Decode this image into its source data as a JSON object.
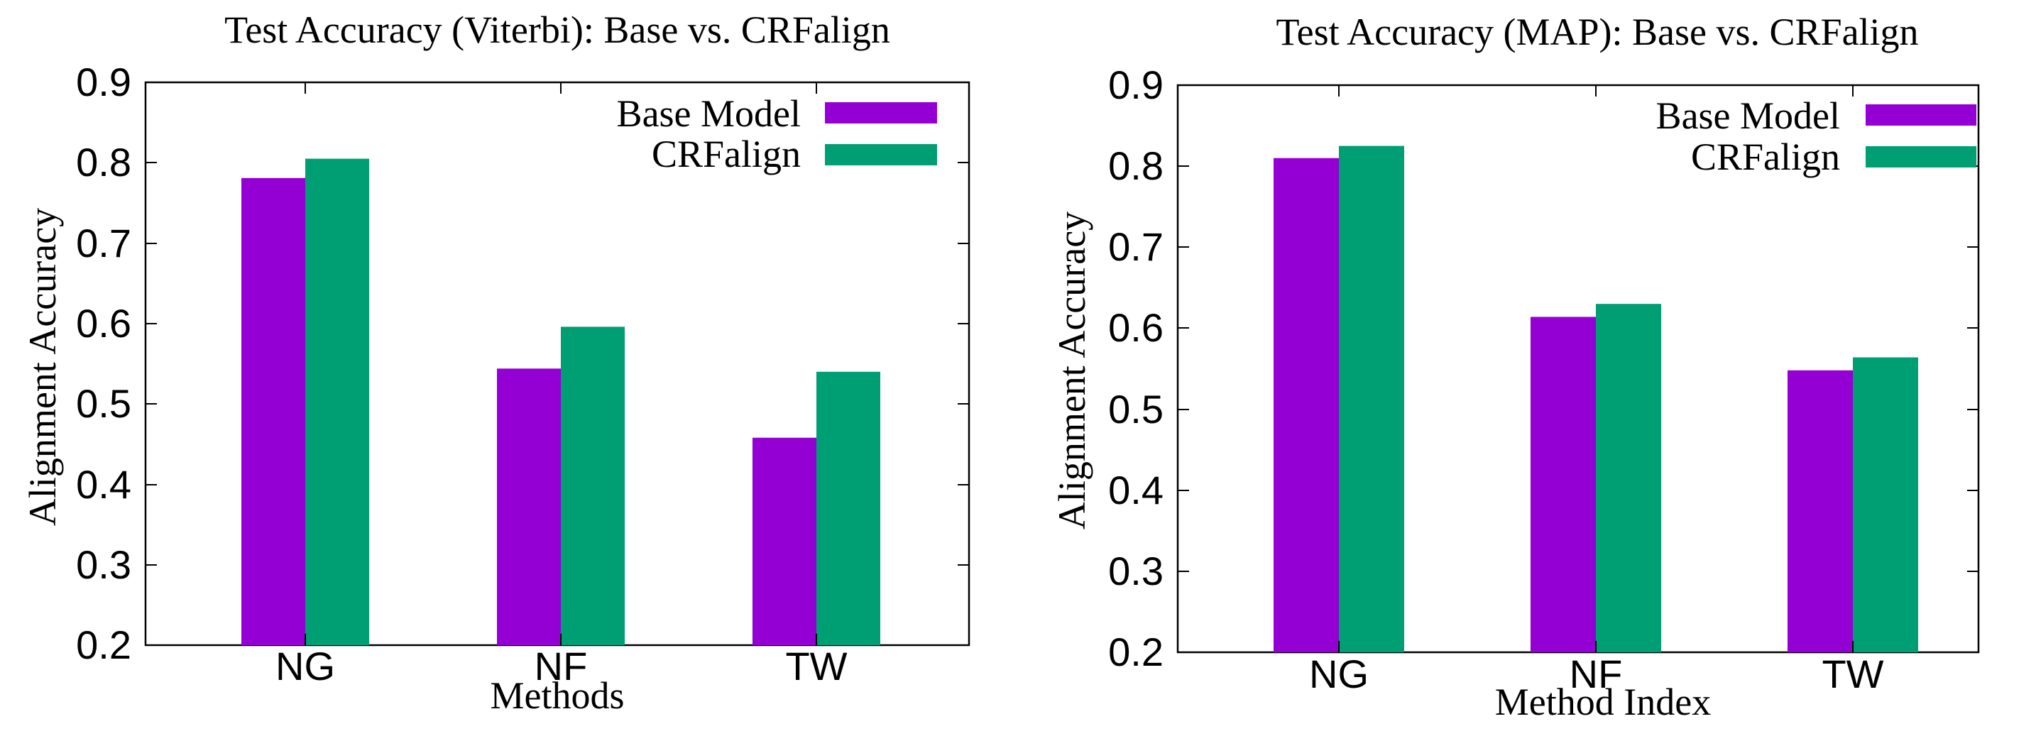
{
  "chart_data": [
    {
      "type": "bar",
      "title": "Test Accuracy (Viterbi): Base vs. CRFalign",
      "xlabel": "Methods",
      "ylabel": "Alignment Accuracy",
      "categories": [
        "NG",
        "NF",
        "TW"
      ],
      "ylim": [
        0.2,
        0.9
      ],
      "yticks": [
        "0.2",
        "0.3",
        "0.4",
        "0.5",
        "0.6",
        "0.7",
        "0.8",
        "0.9"
      ],
      "series": [
        {
          "name": "Base Model",
          "color": "#9400d3",
          "values": [
            0.781,
            0.544,
            0.458
          ]
        },
        {
          "name": "CRFalign",
          "color": "#009e73",
          "values": [
            0.805,
            0.596,
            0.54
          ]
        }
      ],
      "legend": "top-right",
      "grid": false
    },
    {
      "type": "bar",
      "title": "Test Accuracy (MAP): Base vs. CRFalign",
      "xlabel": "Method Index",
      "ylabel": "Alignment Accuracy",
      "categories": [
        "NG",
        "NF",
        "TW"
      ],
      "ylim": [
        0.2,
        0.9
      ],
      "yticks": [
        "0.2",
        "0.3",
        "0.4",
        "0.5",
        "0.6",
        "0.7",
        "0.8",
        "0.9"
      ],
      "series": [
        {
          "name": "Base Model",
          "color": "#9400d3",
          "values": [
            0.81,
            0.614,
            0.548
          ]
        },
        {
          "name": "CRFalign",
          "color": "#009e73",
          "values": [
            0.825,
            0.63,
            0.564
          ]
        }
      ],
      "legend": "top-right",
      "grid": false
    }
  ]
}
